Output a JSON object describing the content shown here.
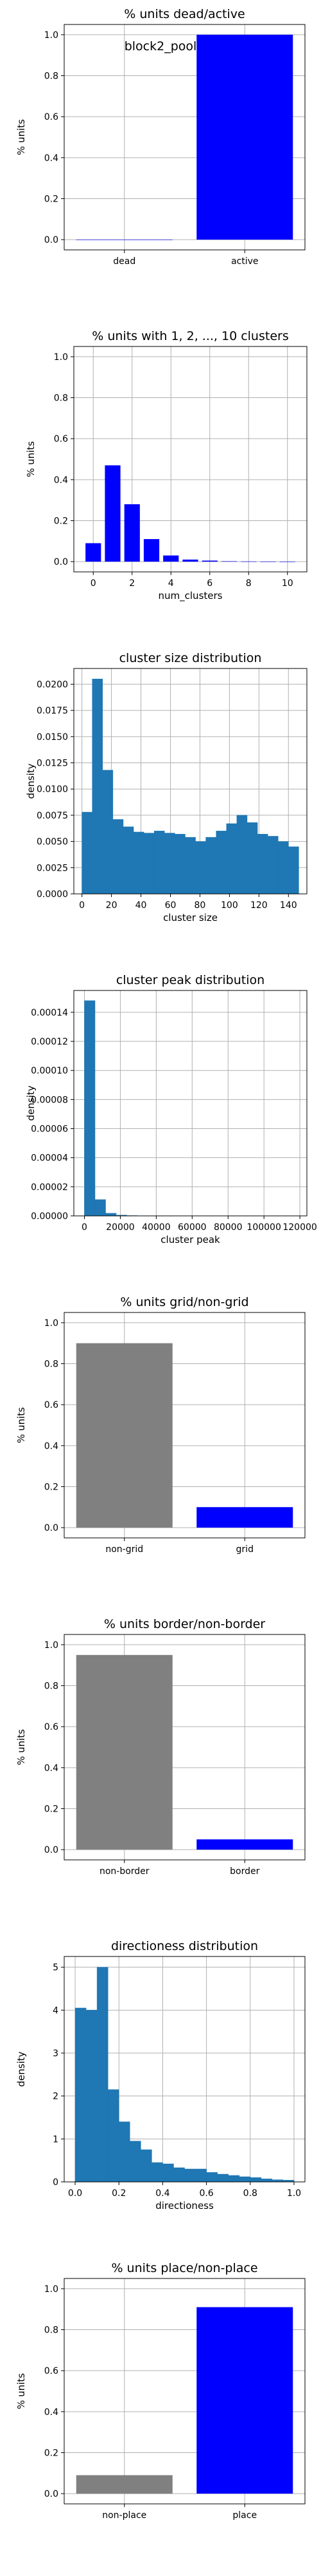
{
  "colors": {
    "blue": "#0000ff",
    "gray": "#808080",
    "hist": "#1f77b4",
    "grid": "#b0b0b0"
  },
  "chart_data": [
    {
      "type": "bar",
      "title": "% units dead/active",
      "xlabel": "",
      "ylabel": "% units",
      "categories": [
        "dead",
        "active"
      ],
      "values": [
        0.0,
        1.0
      ],
      "bar_colors": [
        "#0000ff",
        "#0000ff"
      ],
      "ylim": [
        -0.05,
        1.05
      ],
      "yticks": [
        0.0,
        0.2,
        0.4,
        0.6,
        0.8,
        1.0
      ],
      "ytick_labels": [
        "0.0",
        "0.2",
        "0.4",
        "0.6",
        "0.8",
        "1.0"
      ],
      "annotation": "block2_pool",
      "grid": true
    },
    {
      "type": "bar",
      "title": "% units with 1, 2, ..., 10 clusters",
      "xlabel": "num_clusters",
      "ylabel": "% units",
      "x": [
        0,
        1,
        2,
        3,
        4,
        5,
        6,
        7,
        8,
        9,
        10
      ],
      "values": [
        0.09,
        0.47,
        0.28,
        0.11,
        0.03,
        0.01,
        0.005,
        0.002,
        0.001,
        0.0005,
        0.0002
      ],
      "xlim": [
        -1,
        11
      ],
      "xticks": [
        0,
        2,
        4,
        6,
        8,
        10
      ],
      "xtick_labels": [
        "0",
        "2",
        "4",
        "6",
        "8",
        "10"
      ],
      "ylim": [
        -0.05,
        1.05
      ],
      "yticks": [
        0.0,
        0.2,
        0.4,
        0.6,
        0.8,
        1.0
      ],
      "ytick_labels": [
        "0.0",
        "0.2",
        "0.4",
        "0.6",
        "0.8",
        "1.0"
      ],
      "grid": true
    },
    {
      "type": "histogram",
      "title": "cluster size distribution",
      "xlabel": "cluster size",
      "ylabel": "density",
      "bins": [
        0,
        7,
        14,
        21,
        28,
        35,
        42,
        49,
        56,
        63,
        70,
        77,
        84,
        91,
        98,
        105,
        112,
        119,
        126,
        133,
        140,
        147
      ],
      "values": [
        0.0078,
        0.0205,
        0.0118,
        0.0071,
        0.0064,
        0.0059,
        0.0058,
        0.006,
        0.0058,
        0.0057,
        0.0054,
        0.005,
        0.0054,
        0.006,
        0.0067,
        0.0075,
        0.0068,
        0.0057,
        0.0055,
        0.005,
        0.0045
      ],
      "xlim": [
        -5.5,
        152.5
      ],
      "xticks": [
        0,
        20,
        40,
        60,
        80,
        100,
        120,
        140
      ],
      "xtick_labels": [
        "0",
        "20",
        "40",
        "60",
        "80",
        "100",
        "120",
        "140"
      ],
      "ylim": [
        0,
        0.0215
      ],
      "yticks": [
        0,
        0.0025,
        0.005,
        0.0075,
        0.01,
        0.0125,
        0.015,
        0.0175,
        0.02
      ],
      "ytick_labels": [
        "0.0000",
        "0.0025",
        "0.0050",
        "0.0075",
        "0.0100",
        "0.0125",
        "0.0150",
        "0.0175",
        "0.0200"
      ],
      "grid": true
    },
    {
      "type": "histogram",
      "title": "cluster peak distribution",
      "xlabel": "cluster peak",
      "ylabel": "density",
      "bins": [
        0,
        5900,
        11800,
        17700,
        23600,
        29500,
        35400,
        41300,
        47200,
        53100,
        59000,
        64900,
        70800,
        76700,
        82600,
        88500,
        94400,
        100300,
        106200,
        112100,
        118000
      ],
      "values": [
        0.000148,
        1.12e-05,
        1.8e-06,
        5e-07,
        2e-07,
        1e-07,
        5e-08,
        3e-08,
        2e-08,
        1e-08,
        1e-08,
        0.0,
        0.0,
        0.0,
        0.0,
        0.0,
        0.0,
        0.0,
        0.0,
        0.0
      ],
      "xlim": [
        -5900,
        123900
      ],
      "xticks": [
        0,
        20000,
        40000,
        60000,
        80000,
        100000,
        120000
      ],
      "xtick_labels": [
        "0",
        "20000",
        "40000",
        "60000",
        "80000",
        "100000",
        "120000"
      ],
      "ylim": [
        0,
        0.000155
      ],
      "yticks": [
        0,
        2e-05,
        4e-05,
        6e-05,
        8e-05,
        0.0001,
        0.00012,
        0.00014
      ],
      "ytick_labels": [
        "0.00000",
        "0.00002",
        "0.00004",
        "0.00006",
        "0.00008",
        "0.00010",
        "0.00012",
        "0.00014"
      ],
      "grid": true
    },
    {
      "type": "bar",
      "title": "% units grid/non-grid",
      "xlabel": "",
      "ylabel": "% units",
      "categories": [
        "non-grid",
        "grid"
      ],
      "values": [
        0.9,
        0.1
      ],
      "bar_colors": [
        "#808080",
        "#0000ff"
      ],
      "ylim": [
        -0.05,
        1.05
      ],
      "yticks": [
        0.0,
        0.2,
        0.4,
        0.6,
        0.8,
        1.0
      ],
      "ytick_labels": [
        "0.0",
        "0.2",
        "0.4",
        "0.6",
        "0.8",
        "1.0"
      ],
      "grid": true
    },
    {
      "type": "bar",
      "title": "% units border/non-border",
      "xlabel": "",
      "ylabel": "% units",
      "categories": [
        "non-border",
        "border"
      ],
      "values": [
        0.95,
        0.05
      ],
      "bar_colors": [
        "#808080",
        "#0000ff"
      ],
      "ylim": [
        -0.05,
        1.05
      ],
      "yticks": [
        0.0,
        0.2,
        0.4,
        0.6,
        0.8,
        1.0
      ],
      "ytick_labels": [
        "0.0",
        "0.2",
        "0.4",
        "0.6",
        "0.8",
        "1.0"
      ],
      "grid": true
    },
    {
      "type": "histogram",
      "title": "directioness distribution",
      "xlabel": "directioness",
      "ylabel": "density",
      "bins": [
        0.0,
        0.05,
        0.1,
        0.15,
        0.2,
        0.25,
        0.3,
        0.35,
        0.4,
        0.45,
        0.5,
        0.55,
        0.6,
        0.65,
        0.7,
        0.75,
        0.8,
        0.85,
        0.9,
        0.95,
        1.0
      ],
      "values": [
        4.05,
        4.0,
        5.0,
        2.15,
        1.4,
        0.95,
        0.75,
        0.45,
        0.42,
        0.33,
        0.3,
        0.3,
        0.22,
        0.18,
        0.15,
        0.12,
        0.1,
        0.07,
        0.05,
        0.04
      ],
      "xlim": [
        -0.05,
        1.05
      ],
      "xticks": [
        0.0,
        0.2,
        0.4,
        0.6,
        0.8,
        1.0
      ],
      "xtick_labels": [
        "0.0",
        "0.2",
        "0.4",
        "0.6",
        "0.8",
        "1.0"
      ],
      "ylim": [
        0,
        5.25
      ],
      "yticks": [
        0,
        1,
        2,
        3,
        4,
        5
      ],
      "ytick_labels": [
        "0",
        "1",
        "2",
        "3",
        "4",
        "5"
      ],
      "grid": true
    },
    {
      "type": "bar",
      "title": "% units place/non-place",
      "xlabel": "",
      "ylabel": "% units",
      "categories": [
        "non-place",
        "place"
      ],
      "values": [
        0.09,
        0.91
      ],
      "bar_colors": [
        "#808080",
        "#0000ff"
      ],
      "ylim": [
        -0.05,
        1.05
      ],
      "yticks": [
        0.0,
        0.2,
        0.4,
        0.6,
        0.8,
        1.0
      ],
      "ytick_labels": [
        "0.0",
        "0.2",
        "0.4",
        "0.6",
        "0.8",
        "1.0"
      ],
      "grid": true
    }
  ]
}
